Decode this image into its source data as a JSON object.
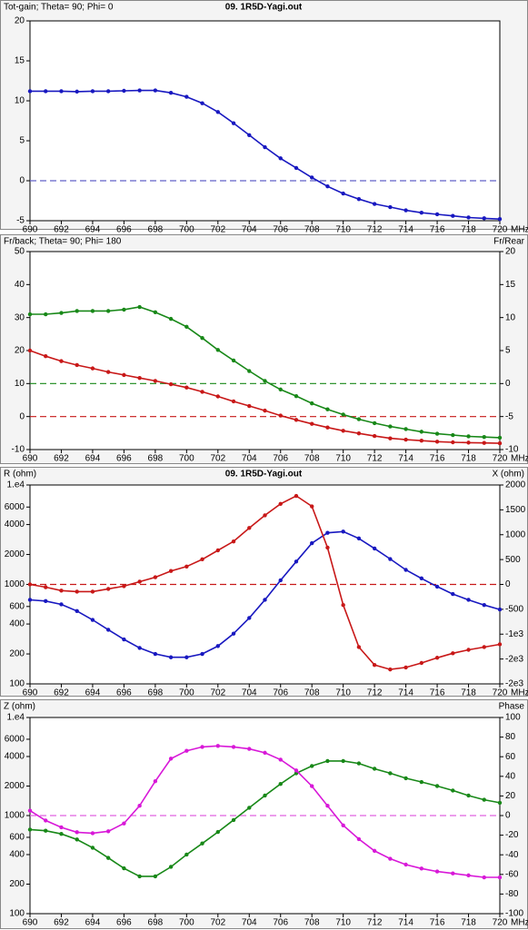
{
  "chart_data": [
    {
      "type": "line",
      "title": "09. 1R5D-Yagi.out",
      "ylabel": "Tot-gain; Theta= 90; Phi= 0",
      "ylabel_color": "#1818c0",
      "x_unit": "MHz",
      "x": [
        690,
        691,
        692,
        693,
        694,
        695,
        696,
        697,
        698,
        699,
        700,
        701,
        702,
        703,
        704,
        705,
        706,
        707,
        708,
        709,
        710,
        711,
        712,
        713,
        714,
        715,
        716,
        717,
        718,
        719,
        720
      ],
      "xlim": [
        690,
        720
      ],
      "xticks": [
        690,
        692,
        694,
        696,
        698,
        700,
        702,
        704,
        706,
        708,
        710,
        712,
        714,
        716,
        718,
        720
      ],
      "ylim": [
        -5,
        20
      ],
      "yticks": [
        -5,
        0,
        5,
        10,
        15,
        20
      ],
      "reference_lines": [
        {
          "value": 0,
          "axis": "y",
          "color": "#6060c8"
        }
      ],
      "series": [
        {
          "color": "#1818c0",
          "axis": "y",
          "values": [
            11.2,
            11.2,
            11.2,
            11.15,
            11.2,
            11.2,
            11.25,
            11.3,
            11.3,
            11.0,
            10.5,
            9.7,
            8.6,
            7.2,
            5.7,
            4.2,
            2.8,
            1.6,
            0.4,
            -0.7,
            -1.6,
            -2.3,
            -2.9,
            -3.3,
            -3.7,
            -4.0,
            -4.2,
            -4.4,
            -4.6,
            -4.7,
            -4.8
          ]
        }
      ]
    },
    {
      "type": "line",
      "ylabel": "Fr/back; Theta= 90; Phi= 180",
      "ylabel_color": "#c81818",
      "y2label": "Fr/Rear",
      "y2label_color": "#188818",
      "x_unit": "MHz",
      "x": [
        690,
        691,
        692,
        693,
        694,
        695,
        696,
        697,
        698,
        699,
        700,
        701,
        702,
        703,
        704,
        705,
        706,
        707,
        708,
        709,
        710,
        711,
        712,
        713,
        714,
        715,
        716,
        717,
        718,
        719,
        720
      ],
      "xlim": [
        690,
        720
      ],
      "xticks": [
        690,
        692,
        694,
        696,
        698,
        700,
        702,
        704,
        706,
        708,
        710,
        712,
        714,
        716,
        718,
        720
      ],
      "ylim": [
        -10,
        50
      ],
      "yticks": [
        -10,
        0,
        10,
        20,
        30,
        40,
        50
      ],
      "y2lim": [
        -10,
        20
      ],
      "y2ticks": [
        -10,
        -5,
        0,
        5,
        10,
        15,
        20
      ],
      "reference_lines": [
        {
          "value": 0,
          "axis": "y",
          "color": "#c81818"
        },
        {
          "value": 0,
          "axis": "y2",
          "color": "#188818"
        }
      ],
      "series": [
        {
          "color": "#c81818",
          "axis": "y",
          "values": [
            20,
            18.3,
            16.8,
            15.6,
            14.6,
            13.5,
            12.6,
            11.7,
            10.8,
            9.8,
            8.8,
            7.5,
            6.1,
            4.6,
            3.2,
            1.8,
            0.3,
            -1.0,
            -2.2,
            -3.3,
            -4.3,
            -5.1,
            -5.9,
            -6.6,
            -7.0,
            -7.3,
            -7.6,
            -7.8,
            -7.9,
            -8.0,
            -8.1
          ]
        },
        {
          "color": "#188818",
          "axis": "y2",
          "values": [
            10.5,
            10.5,
            10.7,
            11,
            11,
            11,
            11.2,
            11.6,
            10.8,
            9.8,
            8.6,
            6.9,
            5.1,
            3.5,
            1.9,
            0.4,
            -0.9,
            -1.9,
            -3.0,
            -3.9,
            -4.7,
            -5.4,
            -6.0,
            -6.5,
            -6.9,
            -7.3,
            -7.6,
            -7.8,
            -8.0,
            -8.1,
            -8.2
          ]
        }
      ]
    },
    {
      "type": "line",
      "title": "09. 1R5D-Yagi.out",
      "ylabel": "R (ohm)",
      "ylabel_color": "#1818c0",
      "y2label": "X (ohm)",
      "y2label_color": "#c81818",
      "x_unit": "MHz",
      "x": [
        690,
        691,
        692,
        693,
        694,
        695,
        696,
        697,
        698,
        699,
        700,
        701,
        702,
        703,
        704,
        705,
        706,
        707,
        708,
        709,
        710,
        711,
        712,
        713,
        714,
        715,
        716,
        717,
        718,
        719,
        720
      ],
      "xlim": [
        690,
        720
      ],
      "xticks": [
        690,
        692,
        694,
        696,
        698,
        700,
        702,
        704,
        706,
        708,
        710,
        712,
        714,
        716,
        718,
        720
      ],
      "ylog": true,
      "ylim": [
        100,
        10000
      ],
      "yticks": [
        100,
        200,
        400,
        600,
        1000,
        2000,
        4000,
        6000,
        {
          "value": 10000,
          "label": "1.e4"
        }
      ],
      "y2lim": [
        -2000,
        2000
      ],
      "y2ticks": [
        {
          "value": -2000,
          "label": "-2e3"
        },
        {
          "value": -1500,
          "label": "-2e3"
        },
        {
          "value": -1000,
          "label": "-1e3"
        },
        -500,
        0,
        500,
        1000,
        1500,
        2000
      ],
      "reference_lines": [
        {
          "value": 0,
          "axis": "y2",
          "color": "#c81818"
        }
      ],
      "series": [
        {
          "color": "#1818c0",
          "axis": "y",
          "values": [
            700,
            680,
            630,
            540,
            440,
            350,
            280,
            230,
            200,
            185,
            185,
            200,
            240,
            320,
            460,
            700,
            1100,
            1700,
            2600,
            3300,
            3400,
            2900,
            2300,
            1800,
            1400,
            1150,
            950,
            800,
            700,
            620,
            560
          ]
        },
        {
          "color": "#c81818",
          "axis": "y2",
          "values": [
            0,
            -55,
            -125,
            -145,
            -145,
            -90,
            -35,
            55,
            145,
            270,
            360,
            505,
            685,
            865,
            1135,
            1390,
            1620,
            1780,
            1570,
            740,
            -415,
            -1260,
            -1620,
            -1710,
            -1670,
            -1580,
            -1475,
            -1385,
            -1315,
            -1260,
            -1205
          ]
        }
      ]
    },
    {
      "type": "line",
      "ylabel": "Z (ohm)",
      "ylabel_color": "#188818",
      "y2label": "Phase",
      "y2label_color": "#d818d8",
      "x_unit": "MHz",
      "x": [
        690,
        691,
        692,
        693,
        694,
        695,
        696,
        697,
        698,
        699,
        700,
        701,
        702,
        703,
        704,
        705,
        706,
        707,
        708,
        709,
        710,
        711,
        712,
        713,
        714,
        715,
        716,
        717,
        718,
        719,
        720
      ],
      "xlim": [
        690,
        720
      ],
      "xticks": [
        690,
        692,
        694,
        696,
        698,
        700,
        702,
        704,
        706,
        708,
        710,
        712,
        714,
        716,
        718,
        720
      ],
      "ylog": true,
      "ylim": [
        100,
        10000
      ],
      "yticks": [
        100,
        200,
        400,
        600,
        1000,
        2000,
        4000,
        6000,
        {
          "value": 10000,
          "label": "1.e4"
        }
      ],
      "y2lim": [
        -100,
        100
      ],
      "y2ticks": [
        -100,
        -80,
        -60,
        -40,
        -20,
        0,
        20,
        40,
        60,
        80,
        100
      ],
      "reference_lines": [
        {
          "value": 0,
          "axis": "y2",
          "color": "#e060e0"
        }
      ],
      "series": [
        {
          "color": "#188818",
          "axis": "y",
          "values": [
            720,
            700,
            650,
            570,
            470,
            370,
            290,
            240,
            240,
            300,
            400,
            520,
            680,
            900,
            1200,
            1600,
            2100,
            2700,
            3200,
            3600,
            3600,
            3400,
            3000,
            2700,
            2400,
            2200,
            2000,
            1800,
            1600,
            1450,
            1350
          ]
        },
        {
          "color": "#d818d8",
          "axis": "y2",
          "values": [
            5,
            -5,
            -12,
            -17,
            -18,
            -16,
            -8,
            10,
            35,
            58,
            66,
            70,
            71,
            70,
            68,
            64,
            57,
            46,
            30,
            10,
            -10,
            -24,
            -36,
            -44,
            -50,
            -54,
            -57,
            -59,
            -61,
            -63,
            -63
          ]
        }
      ]
    }
  ]
}
